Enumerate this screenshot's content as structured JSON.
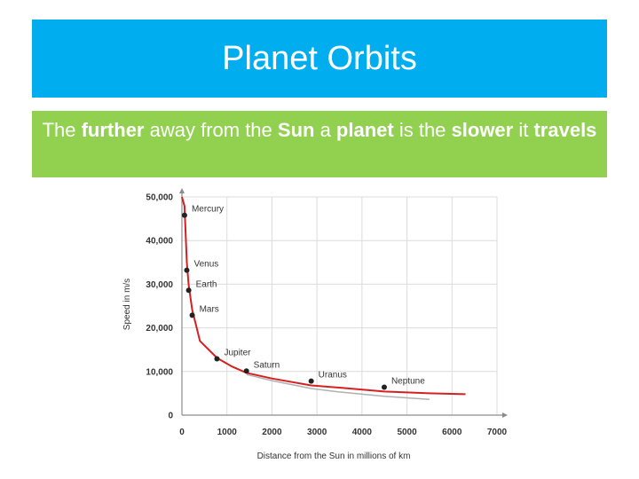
{
  "slide": {
    "title": "Planet Orbits",
    "subtitle": {
      "parts": [
        {
          "text": "The ",
          "bold": false
        },
        {
          "text": "further",
          "bold": true
        },
        {
          "text": " away from the ",
          "bold": false
        },
        {
          "text": "Sun",
          "bold": true
        },
        {
          "text": " a ",
          "bold": false
        },
        {
          "text": "planet",
          "bold": true
        },
        {
          "text": " is the ",
          "bold": false
        },
        {
          "text": "slower",
          "bold": true
        },
        {
          "text": " it ",
          "bold": false
        },
        {
          "text": "travels",
          "bold": true
        }
      ]
    }
  },
  "chart_data": {
    "type": "line",
    "xlabel": "Distance from the Sun in millions of km",
    "ylabel": "Speed in m/s",
    "xlim": [
      0,
      7000
    ],
    "ylim": [
      0,
      50000
    ],
    "x_ticks": [
      0,
      1000,
      2000,
      3000,
      4000,
      5000,
      6000,
      7000
    ],
    "x_tick_labels": [
      "0",
      "1000",
      "2000",
      "3000",
      "4000",
      "5000",
      "6000",
      "7000"
    ],
    "y_ticks": [
      0,
      10000,
      20000,
      30000,
      40000,
      50000
    ],
    "y_tick_labels": [
      "0",
      "10,000",
      "20,000",
      "30,000",
      "40,000",
      "50,000"
    ],
    "grid": true,
    "curve": {
      "color": "#d62020",
      "x": [
        0,
        58,
        108,
        150,
        228,
        400,
        778,
        1100,
        1433,
        2000,
        2872,
        3500,
        4495,
        5500,
        6300
      ],
      "y": [
        50000,
        47900,
        35000,
        29800,
        24100,
        17000,
        13100,
        11200,
        9700,
        8400,
        6800,
        6300,
        5400,
        5000,
        4800
      ]
    },
    "reference_curve": {
      "color": "#b0b0b0",
      "x": [
        1433,
        2000,
        2872,
        3500,
        4495,
        5500
      ],
      "y": [
        9300,
        7900,
        6100,
        5300,
        4300,
        3600
      ]
    },
    "points": [
      {
        "name": "Mercury",
        "x": 58,
        "y": 45800
      },
      {
        "name": "Venus",
        "x": 108,
        "y": 33200
      },
      {
        "name": "Earth",
        "x": 150,
        "y": 28600
      },
      {
        "name": "Mars",
        "x": 228,
        "y": 22900
      },
      {
        "name": "Jupiter",
        "x": 778,
        "y": 12900
      },
      {
        "name": "Saturn",
        "x": 1433,
        "y": 10100
      },
      {
        "name": "Uranus",
        "x": 2872,
        "y": 7800
      },
      {
        "name": "Neptune",
        "x": 4495,
        "y": 6400
      }
    ],
    "colors": {
      "title_bar": "#00aeef",
      "subtitle_box": "#92d050",
      "curve": "#d62020",
      "grid": "#dcdcdc",
      "axis": "#8c8c8c",
      "point": "#222222"
    }
  }
}
